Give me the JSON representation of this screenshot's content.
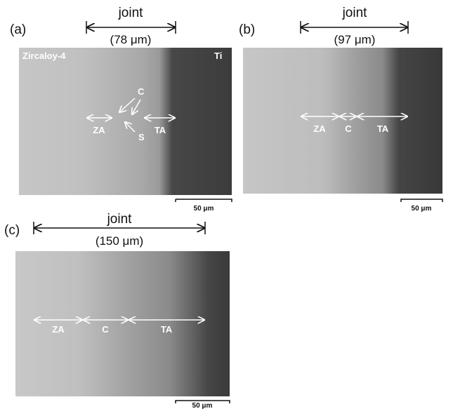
{
  "panels": [
    {
      "label": "(a)",
      "joint": "joint",
      "width": "(78 μm)",
      "materials": [
        "Zircaloy-4",
        "Ti"
      ],
      "markers": [
        "C",
        "S"
      ],
      "regions": [
        "ZA",
        "TA"
      ],
      "scale_bar": "50 μm"
    },
    {
      "label": "(b)",
      "joint": "joint",
      "width": "(97 μm)",
      "regions": [
        "ZA",
        "C",
        "TA"
      ],
      "scale_bar": "50 μm"
    },
    {
      "label": "(c)",
      "joint": "joint",
      "width": "(150 μm)",
      "regions": [
        "ZA",
        "C",
        "TA"
      ],
      "scale_bar": "50 μm"
    }
  ]
}
